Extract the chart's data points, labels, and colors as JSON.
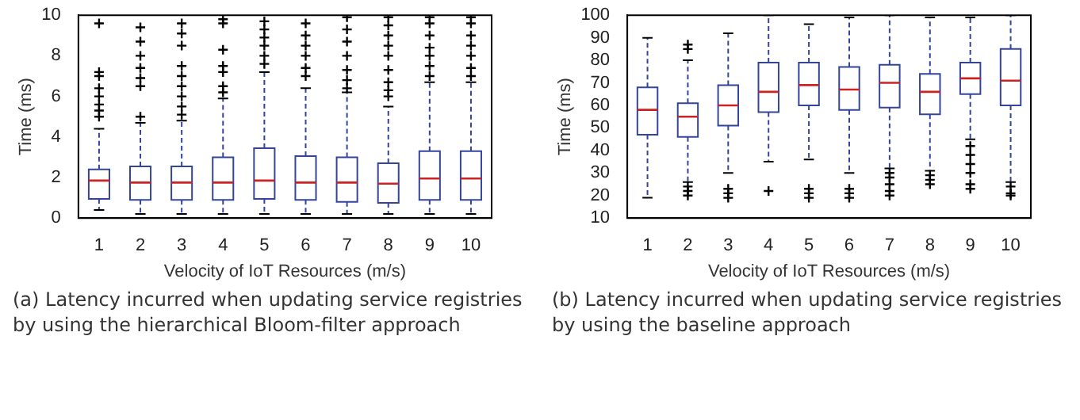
{
  "chart_data": [
    {
      "type": "box",
      "xlabel": "Velocity of IoT Resources (m/s)",
      "ylabel": "Time (ms)",
      "categories": [
        "1",
        "2",
        "3",
        "4",
        "5",
        "6",
        "7",
        "8",
        "9",
        "10"
      ],
      "color": "#33449a",
      "ylim": [
        0,
        10
      ],
      "yticks": [
        0,
        2,
        4,
        6,
        8,
        10
      ],
      "boxes": [
        {
          "low": 0.4,
          "q1": 0.95,
          "median": 1.85,
          "q3": 2.4,
          "high": 4.4,
          "outliers": [
            5.0,
            5.3,
            5.6,
            6.0,
            6.4,
            7.0,
            7.2,
            9.6
          ]
        },
        {
          "low": 0.2,
          "q1": 0.9,
          "median": 1.75,
          "q3": 2.55,
          "high": 4.7,
          "outliers": [
            5.0,
            6.5,
            6.9,
            7.4,
            8.0,
            8.7,
            9.4
          ]
        },
        {
          "low": 0.2,
          "q1": 0.9,
          "median": 1.75,
          "q3": 2.55,
          "high": 4.8,
          "outliers": [
            5.1,
            5.5,
            6.0,
            6.5,
            7.0,
            7.5,
            8.5,
            9.1,
            9.6
          ]
        },
        {
          "low": 0.2,
          "q1": 0.9,
          "median": 1.75,
          "q3": 3.0,
          "high": 5.9,
          "outliers": [
            6.2,
            6.5,
            7.2,
            7.5,
            8.3,
            9.6,
            9.8
          ]
        },
        {
          "low": 0.2,
          "q1": 0.95,
          "median": 1.85,
          "q3": 3.45,
          "high": 7.2,
          "outliers": [
            7.6,
            8.0,
            8.5,
            8.9,
            9.3,
            9.7
          ]
        },
        {
          "low": 0.2,
          "q1": 0.9,
          "median": 1.75,
          "q3": 3.05,
          "high": 6.4,
          "outliers": [
            7.0,
            7.4,
            8.0,
            8.5,
            9.0,
            9.6
          ]
        },
        {
          "low": 0.2,
          "q1": 0.8,
          "median": 1.75,
          "q3": 3.0,
          "high": 6.2,
          "outliers": [
            6.4,
            6.8,
            7.3,
            8.0,
            8.7,
            9.3,
            9.9
          ]
        },
        {
          "low": 0.2,
          "q1": 0.75,
          "median": 1.7,
          "q3": 2.7,
          "high": 5.5,
          "outliers": [
            6.0,
            6.3,
            6.7,
            7.3,
            8.0,
            8.5,
            9.0,
            9.5,
            9.9
          ]
        },
        {
          "low": 0.2,
          "q1": 0.9,
          "median": 1.95,
          "q3": 3.3,
          "high": 6.7,
          "outliers": [
            7.0,
            7.5,
            8.0,
            8.4,
            9.0,
            9.6,
            9.9
          ]
        },
        {
          "low": 0.2,
          "q1": 0.9,
          "median": 1.95,
          "q3": 3.3,
          "high": 6.7,
          "outliers": [
            7.0,
            7.4,
            8.0,
            8.5,
            9.0,
            9.6,
            9.9
          ]
        }
      ],
      "annotations": [
        "(a) Latency incurred when updating service registries by using the hierarchical Bloom-filter approach"
      ]
    },
    {
      "type": "box",
      "xlabel": "Velocity of IoT Resources (m/s)",
      "ylabel": "Time (ms)",
      "categories": [
        "1",
        "2",
        "3",
        "4",
        "5",
        "6",
        "7",
        "8",
        "9",
        "10"
      ],
      "color": "#33449a",
      "ylim": [
        10,
        100
      ],
      "yticks": [
        10,
        20,
        30,
        40,
        50,
        60,
        70,
        80,
        90,
        100
      ],
      "boxes": [
        {
          "low": 19,
          "q1": 47,
          "median": 58,
          "q3": 68,
          "high": 90
        },
        {
          "low": 26,
          "q1": 46,
          "median": 55,
          "q3": 61,
          "high": 80,
          "outliers": [
            20,
            22,
            24,
            85,
            87
          ]
        },
        {
          "low": 30,
          "q1": 51,
          "median": 60,
          "q3": 69,
          "high": 92,
          "outliers": [
            19,
            21,
            23
          ]
        },
        {
          "low": 35,
          "q1": 57,
          "median": 66,
          "q3": 79,
          "high": 100,
          "outliers": [
            22
          ]
        },
        {
          "low": 36,
          "q1": 60,
          "median": 69,
          "q3": 79,
          "high": 96,
          "outliers": [
            19,
            21,
            23
          ]
        },
        {
          "low": 30,
          "q1": 58,
          "median": 67,
          "q3": 77,
          "high": 99,
          "outliers": [
            19,
            21,
            23
          ]
        },
        {
          "low": 32,
          "q1": 59,
          "median": 70,
          "q3": 78,
          "high": 100,
          "outliers": [
            20,
            22,
            25,
            28,
            30
          ]
        },
        {
          "low": 31,
          "q1": 56,
          "median": 66,
          "q3": 74,
          "high": 99,
          "outliers": [
            25,
            27,
            29
          ]
        },
        {
          "low": 45,
          "q1": 65,
          "median": 72,
          "q3": 79,
          "high": 99,
          "outliers": [
            23,
            25,
            30,
            34,
            38,
            42
          ]
        },
        {
          "low": 26,
          "q1": 60,
          "median": 71,
          "q3": 85,
          "high": 100,
          "outliers": [
            20,
            21,
            24
          ]
        }
      ],
      "annotations": [
        "(b) Latency incurred when updating service registries by using the baseline approach"
      ]
    }
  ]
}
